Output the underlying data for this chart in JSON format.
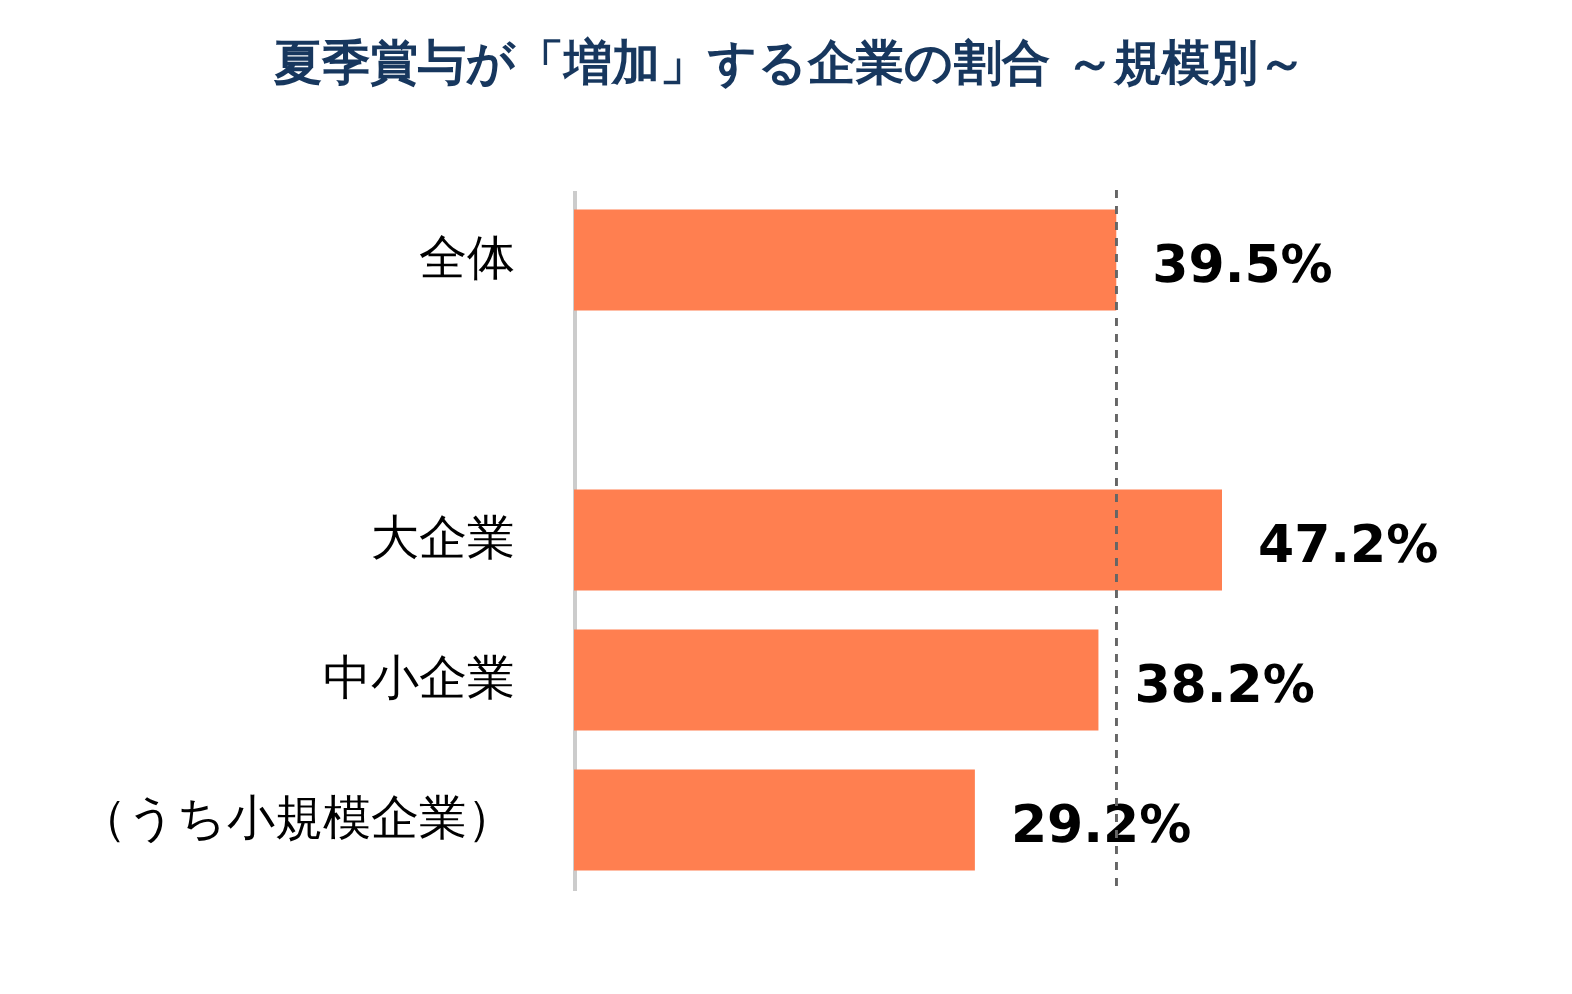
{
  "chart_data": {
    "type": "bar",
    "orientation": "horizontal",
    "title": "夏季賞与が「増加」する企業の割合 ～規模別～",
    "categories": [
      "全体",
      null,
      "大企業",
      "中小企業",
      "（うち小規模企業）"
    ],
    "values": [
      39.5,
      null,
      47.2,
      38.2,
      29.2
    ],
    "colors": [
      "#ff7f50",
      null,
      "#ff7f50",
      "#ff7f50",
      "#ff7f50"
    ],
    "value_labels": [
      "39.5%",
      null,
      "47.2%",
      "38.2%",
      "29.2%"
    ],
    "ref_lines": [
      {
        "axis": "x",
        "value": 39.5,
        "color": "#666666",
        "line_style": "dashed"
      }
    ]
  }
}
